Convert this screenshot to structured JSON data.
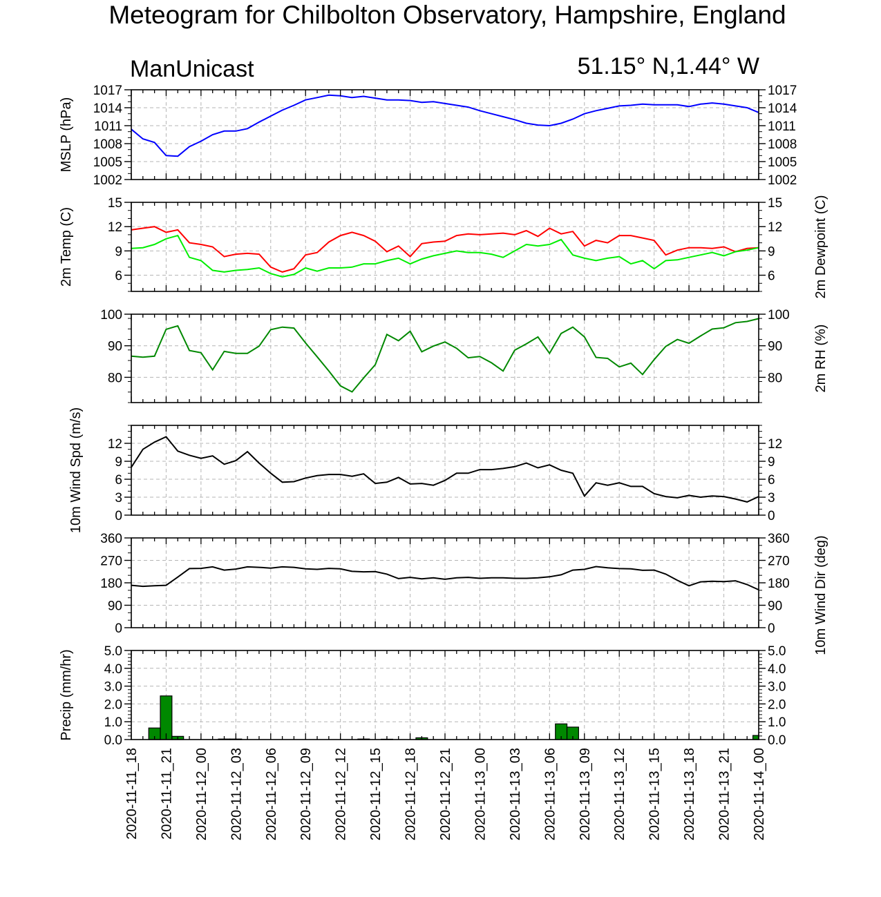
{
  "title": "Meteogram for Chilbolton Observatory, Hampshire, England",
  "model_label": "ManUnicast",
  "location_label": "51.15° N,1.44° W",
  "time_labels": [
    "2020-11-11_18",
    "2020-11-11_21",
    "2020-11-12_00",
    "2020-11-12_03",
    "2020-11-12_06",
    "2020-11-12_09",
    "2020-11-12_12",
    "2020-11-12_15",
    "2020-11-12_18",
    "2020-11-12_21",
    "2020-11-13_00",
    "2020-11-13_03",
    "2020-11-13_06",
    "2020-11-13_09",
    "2020-11-13_12",
    "2020-11-13_15",
    "2020-11-13_18",
    "2020-11-13_21",
    "2020-11-14_00"
  ],
  "chart_data": [
    {
      "type": "line",
      "ylabel": "MSLP (hPa)",
      "ylim": [
        1002,
        1017
      ],
      "yticks": [
        1002,
        1005,
        1008,
        1011,
        1014,
        1017
      ],
      "grid": true,
      "hours": [
        0,
        1,
        2,
        3,
        4,
        5,
        6,
        7,
        8,
        9,
        10,
        11,
        12,
        13,
        14,
        15,
        16,
        17,
        18,
        19,
        20,
        21,
        22,
        23,
        24,
        25,
        26,
        27,
        28,
        29,
        30,
        31,
        32,
        33,
        34,
        35,
        36,
        37,
        38,
        39,
        40,
        41,
        42,
        43,
        44,
        45,
        46,
        47,
        48,
        49,
        50,
        51,
        52,
        53,
        54
      ],
      "series": [
        {
          "color": "#0000ff",
          "values": [
            1010.4,
            1008.8,
            1008.2,
            1006.0,
            1005.9,
            1007.5,
            1008.4,
            1009.5,
            1010.1,
            1010.1,
            1010.5,
            1011.6,
            1012.6,
            1013.6,
            1014.4,
            1015.3,
            1015.7,
            1016.1,
            1016.0,
            1015.7,
            1015.9,
            1015.6,
            1015.3,
            1015.3,
            1015.2,
            1014.9,
            1015.0,
            1014.7,
            1014.4,
            1014.1,
            1013.5,
            1013.0,
            1012.5,
            1012.0,
            1011.4,
            1011.1,
            1011.0,
            1011.4,
            1012.1,
            1013.0,
            1013.5,
            1013.9,
            1014.3,
            1014.4,
            1014.6,
            1014.5,
            1014.5,
            1014.5,
            1014.2,
            1014.6,
            1014.8,
            1014.6,
            1014.3,
            1014.0,
            1013.2
          ]
        }
      ]
    },
    {
      "type": "line",
      "ylabel": "2m Temp (C)",
      "ylabel_right": "2m Dewpoint (C)",
      "ylim": [
        4,
        15
      ],
      "yticks": [
        6,
        9,
        12,
        15
      ],
      "grid": true,
      "hours": [
        0,
        1,
        2,
        3,
        4,
        5,
        6,
        7,
        8,
        9,
        10,
        11,
        12,
        13,
        14,
        15,
        16,
        17,
        18,
        19,
        20,
        21,
        22,
        23,
        24,
        25,
        26,
        27,
        28,
        29,
        30,
        31,
        32,
        33,
        34,
        35,
        36,
        37,
        38,
        39,
        40,
        41,
        42,
        43,
        44,
        45,
        46,
        47,
        48,
        49,
        50,
        51,
        52,
        53,
        54
      ],
      "series": [
        {
          "color": "#ff0000",
          "values": [
            11.6,
            11.8,
            12.0,
            11.3,
            11.6,
            10.0,
            9.8,
            9.5,
            8.3,
            8.6,
            8.7,
            8.6,
            7.0,
            6.4,
            6.8,
            8.5,
            8.8,
            10.1,
            10.9,
            11.3,
            10.9,
            10.2,
            8.9,
            9.6,
            8.3,
            9.9,
            10.1,
            10.2,
            10.9,
            11.1,
            11.0,
            11.1,
            11.2,
            11.0,
            11.5,
            10.8,
            11.8,
            11.1,
            11.4,
            9.6,
            10.3,
            10.0,
            10.9,
            10.9,
            10.6,
            10.3,
            8.5,
            9.1,
            9.4,
            9.4,
            9.3,
            9.5,
            8.9,
            9.3,
            9.4
          ]
        },
        {
          "color": "#00ee00",
          "values": [
            9.3,
            9.4,
            9.8,
            10.5,
            10.9,
            8.2,
            7.8,
            6.6,
            6.4,
            6.6,
            6.7,
            6.9,
            6.2,
            5.8,
            6.1,
            6.9,
            6.5,
            6.9,
            6.9,
            7.0,
            7.4,
            7.4,
            7.8,
            8.1,
            7.4,
            8.0,
            8.4,
            8.7,
            9.0,
            8.8,
            8.8,
            8.6,
            8.2,
            9.0,
            9.8,
            9.6,
            9.8,
            10.4,
            8.5,
            8.1,
            7.8,
            8.1,
            8.3,
            7.4,
            7.8,
            6.8,
            7.8,
            7.9,
            8.2,
            8.5,
            8.8,
            8.4,
            8.9,
            9.1,
            9.4
          ]
        }
      ]
    },
    {
      "type": "line",
      "ylabel_right": "2m RH (%)",
      "ylim": [
        72,
        100
      ],
      "yticks": [
        80,
        90,
        100
      ],
      "grid": true,
      "hours": [
        0,
        1,
        2,
        3,
        4,
        5,
        6,
        7,
        8,
        9,
        10,
        11,
        12,
        13,
        14,
        15,
        16,
        17,
        18,
        19,
        20,
        21,
        22,
        23,
        24,
        25,
        26,
        27,
        28,
        29,
        30,
        31,
        32,
        33,
        34,
        35,
        36,
        37,
        38,
        39,
        40,
        41,
        42,
        43,
        44,
        45,
        46,
        47,
        48,
        49,
        50,
        51,
        52,
        53,
        54
      ],
      "series": [
        {
          "color": "#008800",
          "values": [
            86.7,
            86.4,
            86.7,
            95.2,
            96.3,
            88.5,
            87.8,
            82.4,
            88.2,
            87.6,
            87.6,
            89.9,
            95.1,
            95.9,
            95.6,
            90.9,
            86.5,
            82.0,
            77.3,
            75.4,
            79.8,
            84.0,
            93.6,
            91.6,
            94.6,
            88.1,
            89.9,
            91.2,
            89.2,
            86.2,
            86.6,
            84.6,
            82.0,
            88.6,
            90.6,
            92.8,
            87.6,
            93.9,
            95.9,
            92.8,
            86.3,
            86.0,
            83.3,
            84.5,
            80.9,
            85.6,
            89.8,
            92.0,
            90.8,
            93.1,
            95.3,
            95.7,
            97.3,
            97.7,
            98.6
          ]
        }
      ]
    },
    {
      "type": "line",
      "ylabel": "10m Wind Spd (m/s)",
      "ylim": [
        0,
        15
      ],
      "yticks": [
        0,
        3,
        6,
        9,
        12
      ],
      "grid": true,
      "hours": [
        0,
        1,
        2,
        3,
        4,
        5,
        6,
        7,
        8,
        9,
        10,
        11,
        12,
        13,
        14,
        15,
        16,
        17,
        18,
        19,
        20,
        21,
        22,
        23,
        24,
        25,
        26,
        27,
        28,
        29,
        30,
        31,
        32,
        33,
        34,
        35,
        36,
        37,
        38,
        39,
        40,
        41,
        42,
        43,
        44,
        45,
        46,
        47,
        48,
        49,
        50,
        51,
        52,
        53,
        54
      ],
      "series": [
        {
          "color": "#000000",
          "values": [
            8.0,
            11.0,
            12.2,
            13.1,
            10.7,
            10.0,
            9.5,
            9.9,
            8.5,
            9.1,
            10.6,
            8.7,
            7.0,
            5.5,
            5.6,
            6.2,
            6.6,
            6.8,
            6.8,
            6.5,
            6.9,
            5.3,
            5.5,
            6.3,
            5.2,
            5.3,
            5.0,
            5.8,
            7.0,
            7.0,
            7.6,
            7.6,
            7.8,
            8.1,
            8.7,
            7.9,
            8.4,
            7.5,
            7.0,
            3.2,
            5.4,
            5.0,
            5.4,
            4.8,
            4.8,
            3.6,
            3.1,
            2.9,
            3.3,
            3.0,
            3.2,
            3.1,
            2.7,
            2.2,
            3.1
          ]
        }
      ]
    },
    {
      "type": "line",
      "ylabel_right": "10m Wind Dir (deg)",
      "ylim": [
        0,
        360
      ],
      "yticks": [
        0,
        90,
        180,
        270,
        360
      ],
      "grid": true,
      "hours": [
        0,
        1,
        2,
        3,
        4,
        5,
        6,
        7,
        8,
        9,
        10,
        11,
        12,
        13,
        14,
        15,
        16,
        17,
        18,
        19,
        20,
        21,
        22,
        23,
        24,
        25,
        26,
        27,
        28,
        29,
        30,
        31,
        32,
        33,
        34,
        35,
        36,
        37,
        38,
        39,
        40,
        41,
        42,
        43,
        44,
        45,
        46,
        47,
        48,
        49,
        50,
        51,
        52,
        53,
        54
      ],
      "series": [
        {
          "color": "#000000",
          "values": [
            170,
            166,
            168,
            170,
            203,
            237,
            238,
            244,
            231,
            235,
            244,
            242,
            239,
            244,
            242,
            236,
            234,
            238,
            236,
            226,
            224,
            225,
            215,
            197,
            202,
            196,
            200,
            194,
            200,
            202,
            198,
            200,
            200,
            198,
            198,
            200,
            204,
            212,
            231,
            234,
            245,
            240,
            237,
            236,
            230,
            231,
            215,
            190,
            168,
            184,
            186,
            185,
            188,
            173,
            152
          ]
        }
      ]
    },
    {
      "type": "bar",
      "ylabel": "Precip (mm/hr)",
      "ylim": [
        0,
        5
      ],
      "yticks": [
        0,
        1,
        2,
        3,
        4,
        5
      ],
      "grid": true,
      "color": "#008800",
      "hours": [
        2,
        3,
        4,
        8,
        9,
        20,
        22,
        25,
        37,
        38,
        54
      ],
      "values": [
        0.65,
        2.45,
        0.18,
        0.03,
        0.03,
        0.03,
        0.02,
        0.1,
        0.88,
        0.7,
        0.23
      ]
    }
  ]
}
